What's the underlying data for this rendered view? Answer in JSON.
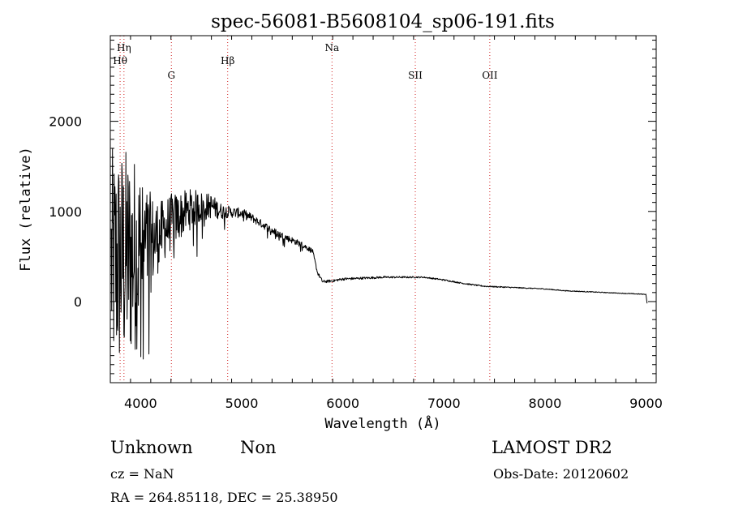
{
  "chart_data": {
    "type": "line",
    "title": "spec-56081-B5608104_sp06-191.fits",
    "xlabel": "Wavelength (Å)",
    "ylabel": "Flux (relative)",
    "xlim": [
      3700,
      9100
    ],
    "ylim": [
      -900,
      2950
    ],
    "x_ticks": [
      4000,
      5000,
      6000,
      7000,
      8000,
      9000
    ],
    "y_ticks": [
      0,
      1000,
      2000
    ],
    "grid": false,
    "lines": [
      {
        "label": "Hη",
        "wavelength": 3835,
        "row": 1
      },
      {
        "label": "Hθ",
        "wavelength": 3797,
        "row": 2
      },
      {
        "label": "G",
        "wavelength": 4304,
        "row": 3
      },
      {
        "label": "Hβ",
        "wavelength": 4861,
        "row": 2
      },
      {
        "label": "Na",
        "wavelength": 5893,
        "row": 1
      },
      {
        "label": "SII",
        "wavelength": 6717,
        "row": 3
      },
      {
        "label": "OII",
        "wavelength": 7454,
        "row": 3
      }
    ],
    "series": [
      {
        "x": [
          3700,
          3800,
          3900,
          4000,
          4100,
          4200,
          4300,
          4400,
          4500,
          4600,
          4700,
          4800,
          4850,
          4900,
          5000,
          5100,
          5200,
          5300,
          5400,
          5500,
          5600,
          5700,
          5750,
          5800,
          5900,
          6000,
          6200,
          6400,
          6600,
          6800,
          7000,
          7200,
          7400,
          7600,
          7800,
          8000,
          8200,
          8400,
          8600,
          8800,
          9000
        ],
        "y": [
          400,
          450,
          500,
          560,
          650,
          760,
          880,
          960,
          1030,
          1050,
          1060,
          1000,
          1000,
          990,
          980,
          930,
          860,
          790,
          730,
          680,
          630,
          560,
          320,
          220,
          230,
          250,
          260,
          270,
          270,
          270,
          240,
          200,
          170,
          160,
          150,
          140,
          120,
          110,
          100,
          90,
          80
        ],
        "noise": [
          1300,
          1300,
          1200,
          1000,
          700,
          450,
          400,
          330,
          280,
          220,
          170,
          110,
          90,
          75,
          70,
          60,
          55,
          50,
          50,
          45,
          40,
          35,
          25,
          20,
          18,
          18,
          16,
          14,
          12,
          10,
          10,
          9,
          8,
          8,
          7,
          6,
          6,
          6,
          5,
          5,
          5
        ]
      }
    ]
  },
  "footer": {
    "object_class": "Unknown",
    "object_subclass": "Non",
    "survey": "LAMOST DR2",
    "cz": "cz = NaN",
    "obs_date": "Obs-Date: 20120602",
    "radec": "RA = 264.85118, DEC =  25.38950"
  }
}
